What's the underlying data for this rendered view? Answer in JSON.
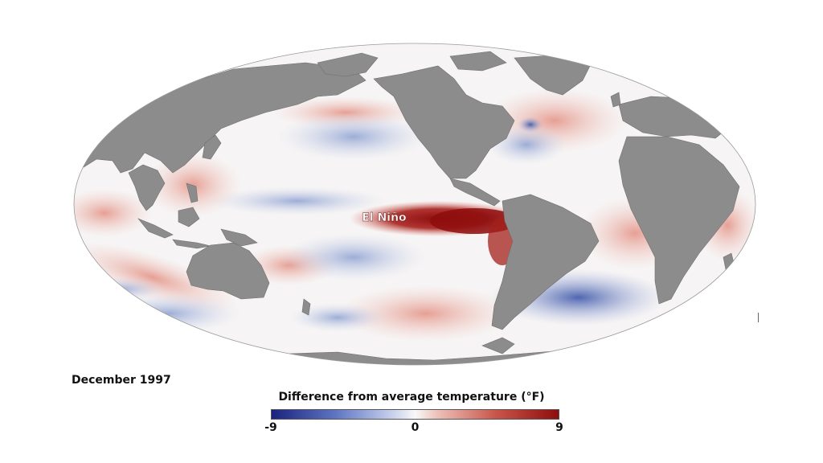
{
  "map": {
    "projection": "mollweide-world",
    "land_color": "#8c8c8c",
    "ocean_base_color": "#f6f4f4",
    "annotation": "El Niño"
  },
  "date_label": "December 1997",
  "legend": {
    "title": "Difference from average temperature (°F)",
    "min_label": "-9",
    "mid_label": "0",
    "max_label": "9",
    "min_value": -9,
    "mid_value": 0,
    "max_value": 9,
    "color_cold": "#1a237e",
    "color_neutral": "#f8f8f8",
    "color_warm": "#8e0d0d"
  }
}
